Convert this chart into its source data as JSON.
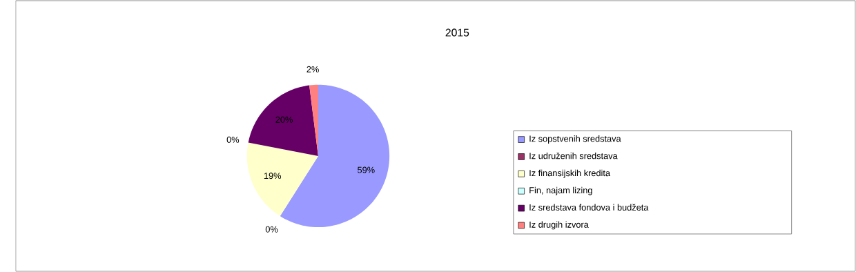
{
  "chart_data": {
    "type": "pie",
    "title": "2015",
    "categories": [
      "Iz sopstvenih sredstava",
      "Iz udruženih sredstava",
      "Iz finansijskih kredita",
      "Fin, najam lizing",
      "Iz sredstava fondova i budžeta",
      "Iz drugih izvora"
    ],
    "values": [
      59,
      0,
      19,
      0,
      20,
      2
    ],
    "value_labels": [
      "59%",
      "0%",
      "19%",
      "0%",
      "20%",
      "2%"
    ],
    "colors": [
      "#9999ff",
      "#993366",
      "#ffffcc",
      "#ccffff",
      "#660066",
      "#ff8080"
    ],
    "legend": "right"
  }
}
